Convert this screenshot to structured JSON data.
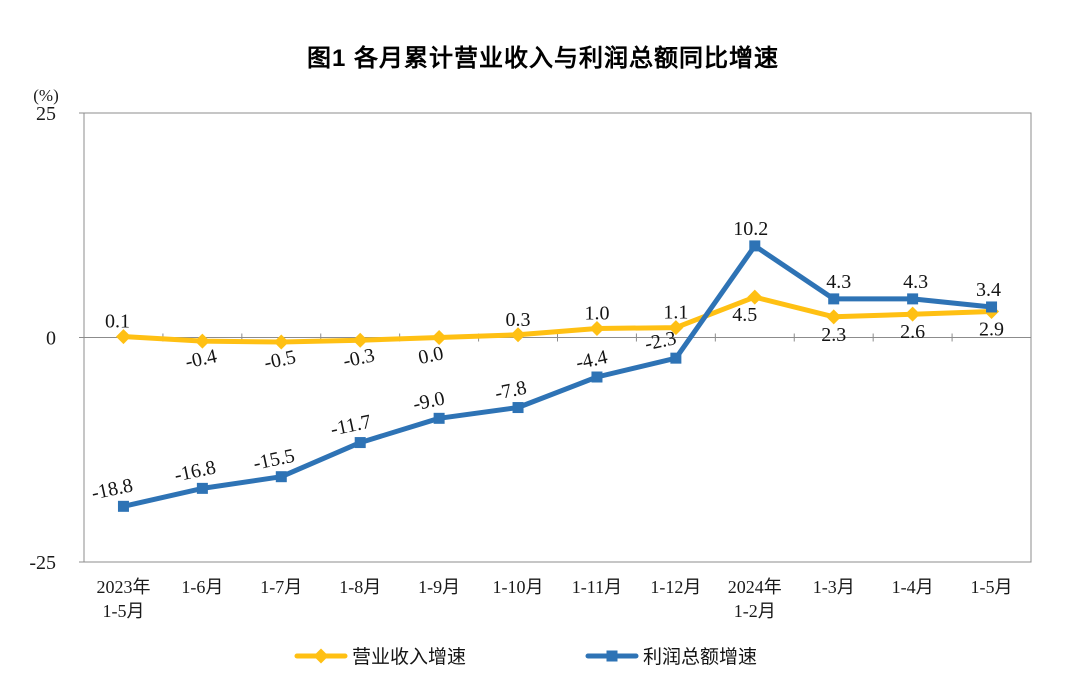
{
  "chart_data": {
    "type": "line",
    "title": "图1 各月累计营业收入与利润总额同比增速",
    "ylabel": "(%)",
    "xlabel": "",
    "ylim": [
      -25,
      25
    ],
    "yticks": [
      25,
      0,
      -25
    ],
    "grid": false,
    "legend_position": "bottom",
    "axis_color": "#8c8c8c",
    "categories": [
      [
        "2023年",
        "1-5月"
      ],
      [
        "1-6月"
      ],
      [
        "1-7月"
      ],
      [
        "1-8月"
      ],
      [
        "1-9月"
      ],
      [
        "1-10月"
      ],
      [
        "1-11月"
      ],
      [
        "1-12月"
      ],
      [
        "2024年",
        "1-2月"
      ],
      [
        "1-3月"
      ],
      [
        "1-4月"
      ],
      [
        "1-5月"
      ]
    ],
    "series": [
      {
        "name": "营业收入增速",
        "color": "#FFC013",
        "marker": "diamond",
        "values": [
          0.1,
          -0.4,
          -0.5,
          -0.3,
          0.0,
          0.3,
          1.0,
          1.1,
          4.5,
          2.3,
          2.6,
          2.9
        ],
        "value_labels": [
          "0.1",
          "-0.4",
          "-0.5",
          "-0.3",
          "0.0",
          "0.3",
          "1.0",
          "1.1",
          "4.5",
          "2.3",
          "2.6",
          "2.9"
        ]
      },
      {
        "name": "利润总额增速",
        "color": "#2E73B5",
        "marker": "square",
        "values": [
          -18.8,
          -16.8,
          -15.5,
          -11.7,
          -9.0,
          -7.8,
          -4.4,
          -2.3,
          10.2,
          4.3,
          4.3,
          3.4
        ],
        "value_labels": [
          "-18.8",
          "-16.8",
          "-15.5",
          "-11.7",
          "-9.0",
          "-7.8",
          "-4.4",
          "-2.3",
          "10.2",
          "4.3",
          "4.3",
          "3.4"
        ]
      }
    ]
  }
}
